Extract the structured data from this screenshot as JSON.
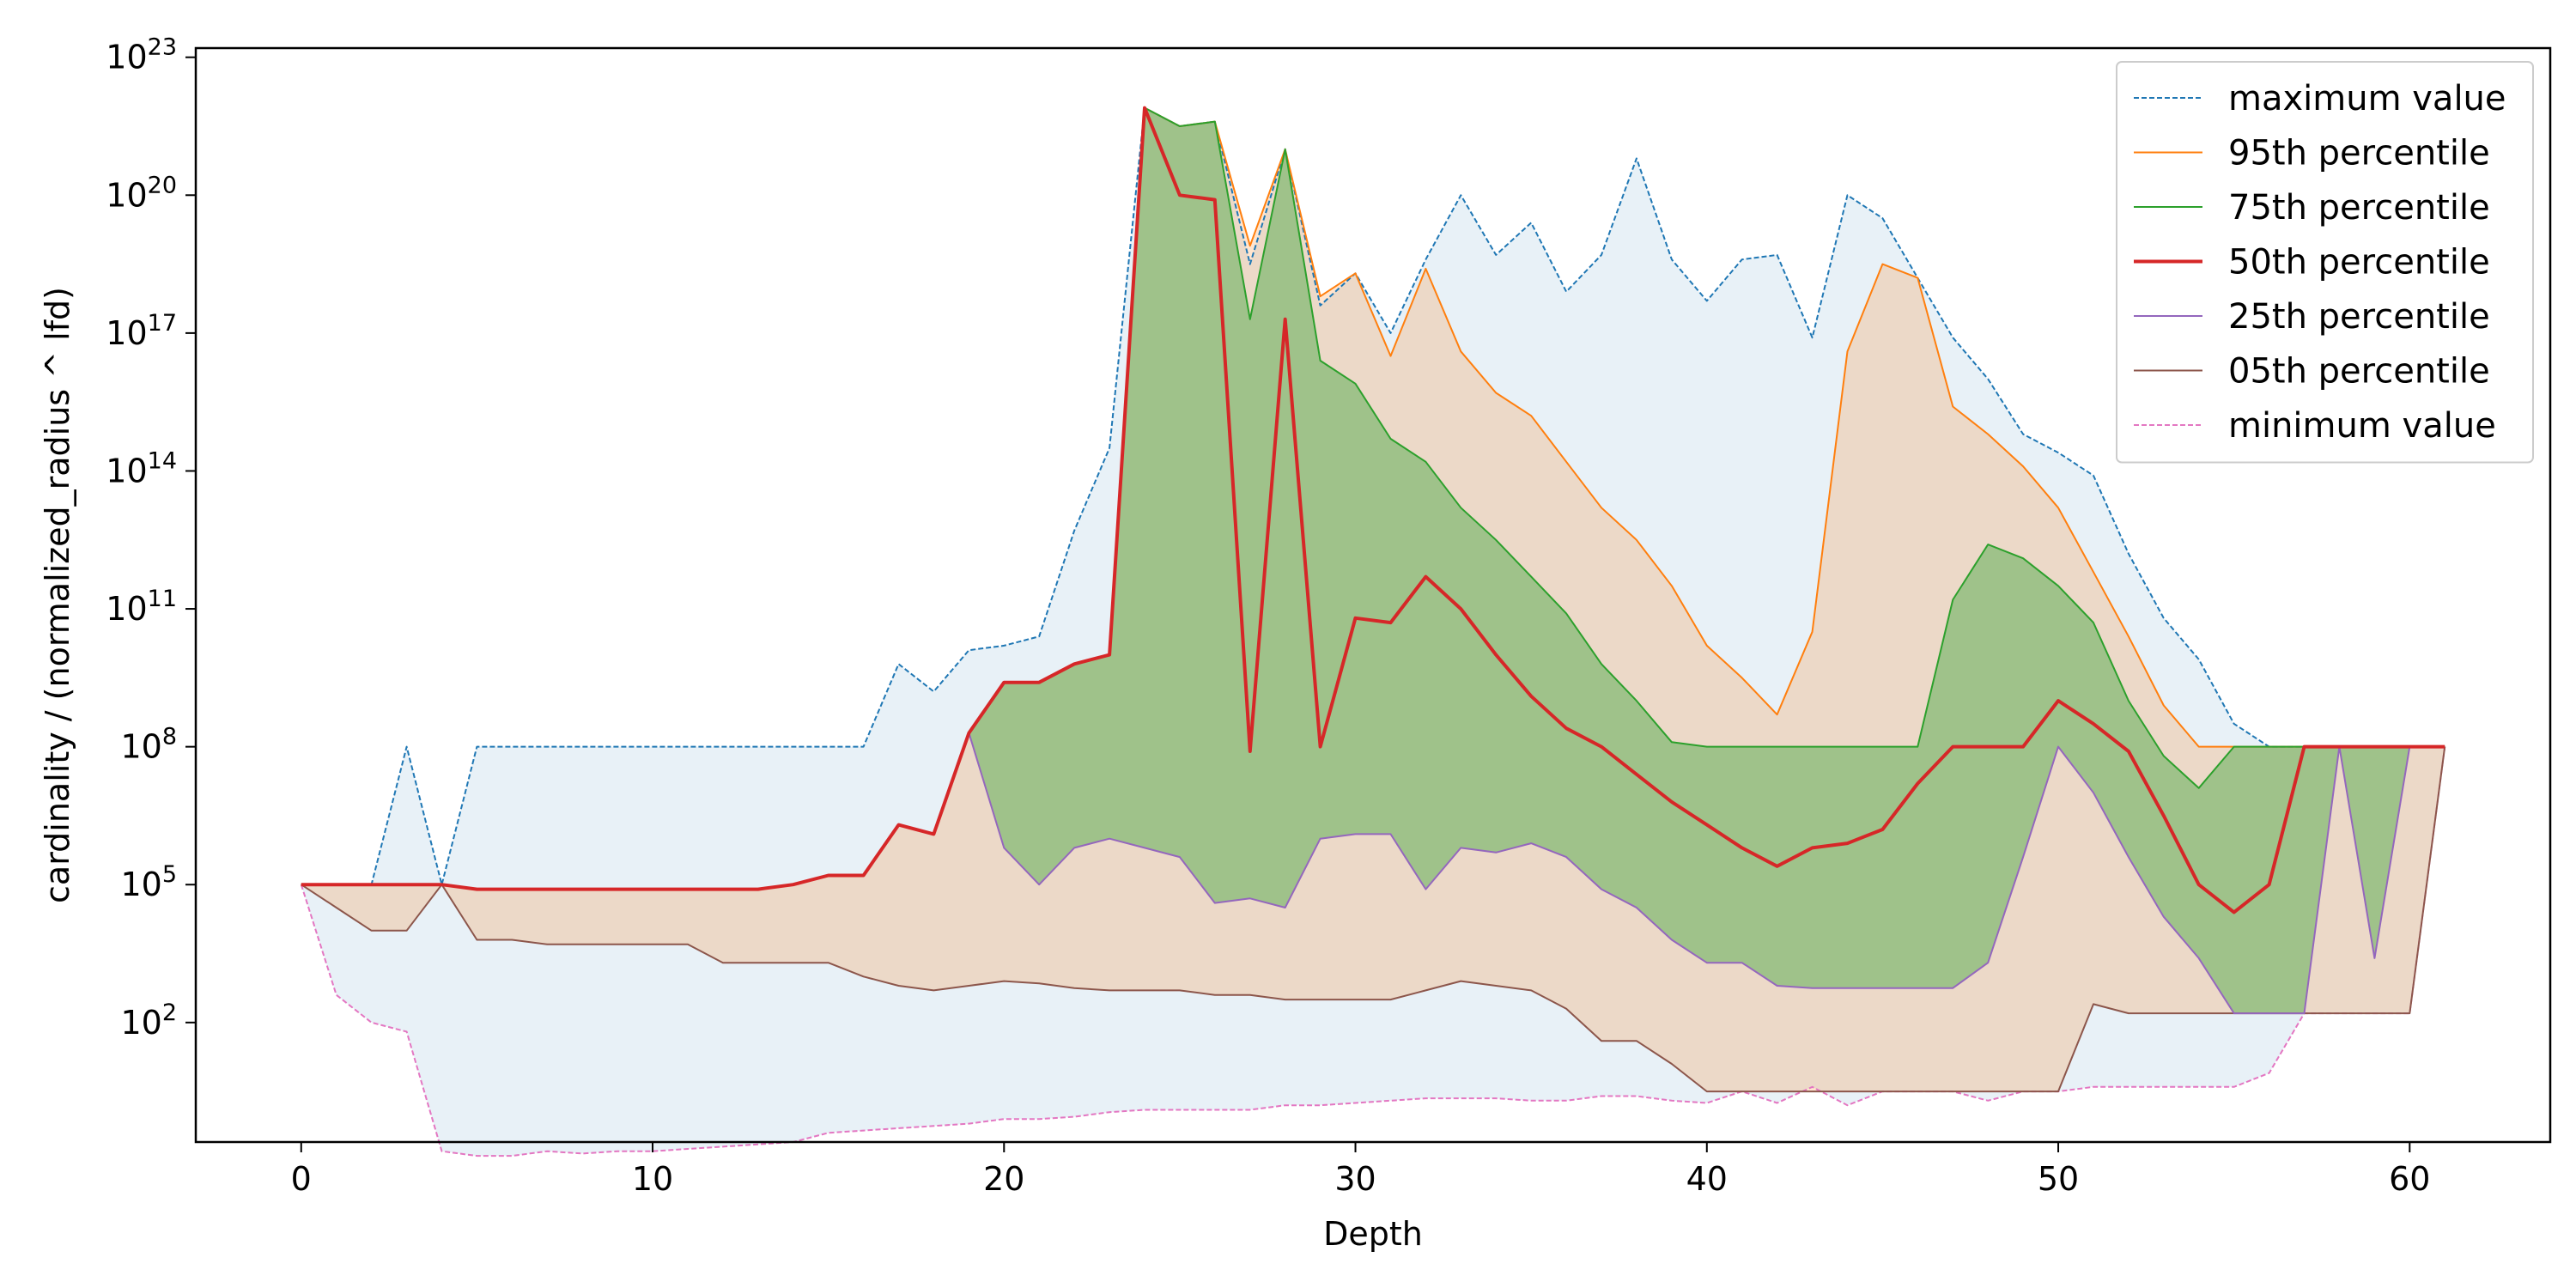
{
  "chart_data": {
    "type": "area",
    "title": "",
    "xlabel": "Depth",
    "ylabel": "cardinality / (normalized_radius ^ lfd)",
    "yscale": "log",
    "xlim": [
      -3,
      64
    ],
    "ylim_log10": [
      -0.6,
      23.2
    ],
    "xticks": [
      0,
      10,
      20,
      30,
      40,
      50,
      60
    ],
    "yticks": [
      {
        "base": "10",
        "exp": "2",
        "value_log10": 2
      },
      {
        "base": "10",
        "exp": "5",
        "value_log10": 5
      },
      {
        "base": "10",
        "exp": "8",
        "value_log10": 8
      },
      {
        "base": "10",
        "exp": "11",
        "value_log10": 11
      },
      {
        "base": "10",
        "exp": "14",
        "value_log10": 14
      },
      {
        "base": "10",
        "exp": "17",
        "value_log10": 17
      },
      {
        "base": "10",
        "exp": "20",
        "value_log10": 20
      },
      {
        "base": "10",
        "exp": "23",
        "value_log10": 23
      }
    ],
    "legend_position": "top-right",
    "grid": false,
    "x": [
      0,
      1,
      2,
      3,
      4,
      5,
      6,
      7,
      8,
      9,
      10,
      11,
      12,
      13,
      14,
      15,
      16,
      17,
      18,
      19,
      20,
      21,
      22,
      23,
      24,
      25,
      26,
      27,
      28,
      29,
      30,
      31,
      32,
      33,
      34,
      35,
      36,
      37,
      38,
      39,
      40,
      41,
      42,
      43,
      44,
      45,
      46,
      47,
      48,
      49,
      50,
      51,
      52,
      53,
      54,
      55,
      56,
      57,
      58,
      59,
      60,
      61
    ],
    "series": [
      {
        "name": "maximum value",
        "color": "#1f77b4",
        "style": "dashed",
        "width": 2,
        "values_log10": [
          5,
          5,
          5,
          8,
          5,
          8,
          8,
          8,
          8,
          8,
          8,
          8,
          8,
          8,
          8,
          8,
          8,
          9.8,
          9.2,
          10.1,
          10.2,
          10.4,
          12.7,
          14.5,
          21.9,
          21.5,
          21.6,
          18.5,
          21.0,
          17.6,
          18.3,
          17.0,
          18.6,
          20.0,
          18.7,
          19.4,
          17.9,
          18.7,
          20.8,
          18.6,
          17.7,
          18.6,
          18.7,
          16.9,
          20.0,
          19.5,
          18.2,
          16.9,
          16.0,
          14.8,
          14.4,
          13.9,
          12.2,
          10.8,
          9.9,
          8.5,
          8.0,
          8,
          8,
          8,
          8,
          8
        ]
      },
      {
        "name": "95th percentile",
        "color": "#ff7f0e",
        "style": "solid",
        "width": 2,
        "values_log10": [
          5,
          5,
          5,
          5,
          5,
          4.9,
          4.9,
          4.9,
          4.9,
          4.9,
          4.9,
          4.9,
          4.9,
          4.9,
          5.0,
          5.2,
          5.2,
          6.3,
          6.1,
          8.3,
          9.4,
          9.4,
          9.8,
          10.0,
          21.9,
          21.5,
          21.6,
          18.9,
          21.0,
          17.8,
          18.3,
          16.5,
          18.4,
          16.6,
          15.7,
          15.2,
          14.2,
          13.2,
          12.5,
          11.5,
          10.2,
          9.5,
          8.7,
          10.5,
          16.6,
          18.5,
          18.2,
          15.4,
          14.8,
          14.1,
          13.2,
          11.8,
          10.4,
          8.9,
          8,
          8,
          8,
          8,
          8,
          8,
          8,
          8
        ]
      },
      {
        "name": "75th percentile",
        "color": "#2ca02c",
        "style": "solid",
        "width": 2,
        "values_log10": [
          5,
          5,
          5,
          5,
          5,
          4.9,
          4.9,
          4.9,
          4.9,
          4.9,
          4.9,
          4.9,
          4.9,
          4.9,
          5.0,
          5.2,
          5.2,
          6.3,
          6.1,
          8.3,
          9.4,
          9.4,
          9.8,
          10.0,
          21.9,
          21.5,
          21.6,
          17.3,
          21.0,
          16.4,
          15.9,
          14.7,
          14.2,
          13.2,
          12.5,
          11.7,
          10.9,
          9.8,
          9.0,
          8.1,
          8,
          8,
          8,
          8,
          8,
          8,
          8,
          11.2,
          12.4,
          12.1,
          11.5,
          10.7,
          9.0,
          7.8,
          7.1,
          8,
          8,
          8,
          8,
          8,
          8,
          8
        ]
      },
      {
        "name": "50th percentile",
        "color": "#d62728",
        "style": "solid",
        "width": 4,
        "values_log10": [
          5,
          5,
          5,
          5,
          5,
          4.9,
          4.9,
          4.9,
          4.9,
          4.9,
          4.9,
          4.9,
          4.9,
          4.9,
          5.0,
          5.2,
          5.2,
          6.3,
          6.1,
          8.3,
          9.4,
          9.4,
          9.8,
          10.0,
          21.9,
          20.0,
          19.9,
          7.9,
          17.3,
          8.0,
          10.8,
          10.7,
          11.7,
          11.0,
          10.0,
          9.1,
          8.4,
          8.0,
          7.4,
          6.8,
          6.3,
          5.8,
          5.4,
          5.8,
          5.9,
          6.2,
          7.2,
          8,
          8,
          8,
          9.0,
          8.5,
          7.9,
          6.5,
          5.0,
          4.4,
          5.0,
          8,
          8,
          8,
          8,
          8
        ]
      },
      {
        "name": "25th percentile",
        "color": "#9467bd",
        "style": "solid",
        "width": 2,
        "values_log10": [
          5,
          5,
          5,
          5,
          5,
          4.9,
          4.9,
          4.9,
          4.9,
          4.9,
          4.9,
          4.9,
          4.9,
          4.9,
          5.0,
          5.2,
          5.2,
          6.3,
          6.1,
          8.3,
          5.8,
          5.0,
          5.8,
          6.0,
          5.8,
          5.6,
          4.6,
          4.7,
          4.5,
          6.0,
          6.1,
          6.1,
          4.9,
          5.8,
          5.7,
          5.9,
          5.6,
          4.9,
          4.5,
          3.8,
          3.3,
          3.3,
          2.8,
          2.75,
          2.75,
          2.75,
          2.75,
          2.75,
          3.3,
          5.6,
          8,
          7.0,
          5.6,
          4.3,
          3.4,
          2.2,
          2.2,
          2.2,
          8,
          3.4,
          8,
          8
        ]
      },
      {
        "name": "05th percentile",
        "color": "#8c564b",
        "style": "solid",
        "width": 2,
        "values_log10": [
          5,
          4.5,
          4,
          4,
          5,
          3.8,
          3.8,
          3.7,
          3.7,
          3.7,
          3.7,
          3.7,
          3.3,
          3.3,
          3.3,
          3.3,
          3.0,
          2.8,
          2.7,
          2.8,
          2.9,
          2.85,
          2.75,
          2.7,
          2.7,
          2.7,
          2.6,
          2.6,
          2.5,
          2.5,
          2.5,
          2.5,
          2.7,
          2.9,
          2.8,
          2.7,
          2.3,
          1.6,
          1.6,
          1.1,
          0.5,
          0.5,
          0.5,
          0.5,
          0.5,
          0.5,
          0.5,
          0.5,
          0.5,
          0.5,
          0.5,
          2.4,
          2.2,
          2.2,
          2.2,
          2.2,
          2.2,
          2.2,
          2.2,
          2.2,
          2.2,
          8
        ]
      },
      {
        "name": "minimum value",
        "color": "#e377c2",
        "style": "dashed",
        "width": 2,
        "values_log10": [
          5,
          2.6,
          2.0,
          1.8,
          -0.8,
          -0.9,
          -0.9,
          -0.8,
          -0.85,
          -0.8,
          -0.8,
          -0.75,
          -0.7,
          -0.65,
          -0.6,
          -0.4,
          -0.35,
          -0.3,
          -0.25,
          -0.2,
          -0.1,
          -0.1,
          -0.05,
          0.05,
          0.1,
          0.1,
          0.1,
          0.1,
          0.2,
          0.2,
          0.25,
          0.3,
          0.35,
          0.35,
          0.35,
          0.3,
          0.3,
          0.4,
          0.4,
          0.3,
          0.25,
          0.5,
          0.25,
          0.6,
          0.2,
          0.5,
          0.5,
          0.5,
          0.3,
          0.5,
          0.5,
          0.6,
          0.6,
          0.6,
          0.6,
          0.6,
          0.9,
          2.2,
          2.2,
          2.2,
          2.2,
          8
        ]
      }
    ]
  }
}
